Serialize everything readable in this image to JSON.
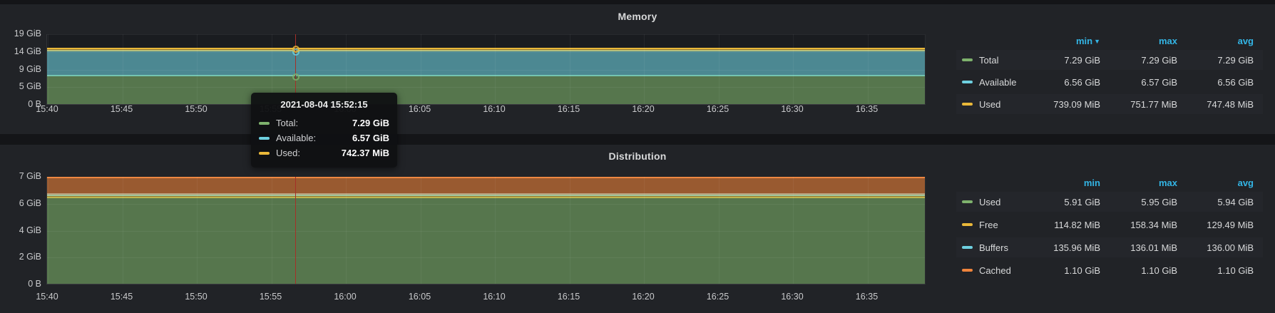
{
  "accent_colors": {
    "header_blue": "#33b5e5",
    "cursor_red": "#a52f28"
  },
  "panels": [
    {
      "title": "Memory",
      "legend": {
        "headers": [
          "min",
          "max",
          "avg"
        ],
        "sorted": "min",
        "sort_dir": "desc"
      },
      "tooltip": {
        "time": "2021-08-04 15:52:15",
        "rows": [
          {
            "label": "Total:",
            "value": "7.29 GiB",
            "color": "#7EB26D"
          },
          {
            "label": "Available:",
            "value": "6.57 GiB",
            "color": "#6ED0E0"
          },
          {
            "label": "Used:",
            "value": "742.37 MiB",
            "color": "#EAB839"
          }
        ]
      }
    },
    {
      "title": "Distribution",
      "legend": {
        "headers": [
          "min",
          "max",
          "avg"
        ]
      }
    }
  ],
  "chart_data": [
    {
      "type": "area",
      "stacked": true,
      "title": "Memory",
      "x": [
        "15:40",
        "15:45",
        "15:50",
        "15:55",
        "16:00",
        "16:05",
        "16:10",
        "16:15",
        "16:20",
        "16:25",
        "16:30",
        "16:35"
      ],
      "y_ticks": [
        {
          "label": "0 B",
          "gb": 0
        },
        {
          "label": "5 GiB",
          "gb": 5
        },
        {
          "label": "9 GiB",
          "gb": 10
        },
        {
          "label": "14 GiB",
          "gb": 15
        },
        {
          "label": "19 GiB",
          "gb": 20
        }
      ],
      "y_max_gb": 20,
      "grid": true,
      "legend_position": "right",
      "series": [
        {
          "name": "Total",
          "color": "#7EB26D",
          "value_gib": 7.29,
          "min": "7.29 GiB",
          "max": "7.29 GiB",
          "avg": "7.29 GiB"
        },
        {
          "name": "Available",
          "color": "#6ED0E0",
          "value_gib": 6.57,
          "min": "6.56 GiB",
          "max": "6.57 GiB",
          "avg": "6.56 GiB"
        },
        {
          "name": "Used",
          "color": "#EAB839",
          "value_gib": 0.725,
          "min": "739.09 MiB",
          "max": "751.77 MiB",
          "avg": "747.48 MiB"
        }
      ],
      "cursor_time": "2021-08-04 15:52:15"
    },
    {
      "type": "area",
      "stacked": true,
      "title": "Distribution",
      "x": [
        "15:40",
        "15:45",
        "15:50",
        "15:55",
        "16:00",
        "16:05",
        "16:10",
        "16:15",
        "16:20",
        "16:25",
        "16:30",
        "16:35"
      ],
      "y_ticks": [
        {
          "label": "0 B",
          "gb": 0
        },
        {
          "label": "2 GiB",
          "gb": 2
        },
        {
          "label": "4 GiB",
          "gb": 4
        },
        {
          "label": "6 GiB",
          "gb": 6
        },
        {
          "label": "7 GiB",
          "gb": 8.02
        }
      ],
      "y_max_gb": 8.02,
      "grid": true,
      "legend_position": "right",
      "series": [
        {
          "name": "Used",
          "color": "#7EB26D",
          "value_gib": 5.94,
          "min": "5.91 GiB",
          "max": "5.95 GiB",
          "avg": "5.94 GiB"
        },
        {
          "name": "Free",
          "color": "#EAB839",
          "value_gib": 0.1264,
          "min": "114.82 MiB",
          "max": "158.34 MiB",
          "avg": "129.49 MiB"
        },
        {
          "name": "Buffers",
          "color": "#6ED0E0",
          "value_gib": 0.1328,
          "min": "135.96 MiB",
          "max": "136.01 MiB",
          "avg": "136.00 MiB"
        },
        {
          "name": "Cached",
          "color": "#EF843C",
          "value_gib": 1.1,
          "min": "1.10 GiB",
          "max": "1.10 GiB",
          "avg": "1.10 GiB"
        }
      ]
    }
  ]
}
